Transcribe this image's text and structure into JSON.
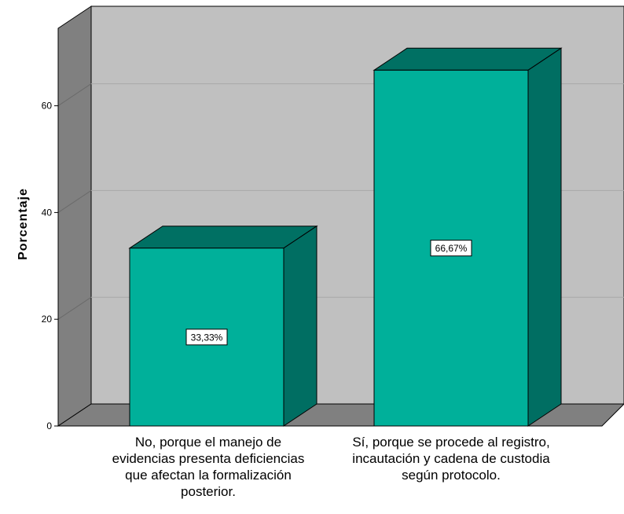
{
  "chart_data": {
    "type": "bar",
    "title": "",
    "xlabel": "",
    "ylabel": "Porcentaje",
    "ylim": [
      0,
      70
    ],
    "yticks": [
      "0",
      "20",
      "40",
      "60"
    ],
    "grid": true,
    "style": "3d",
    "categories": [
      "No, porque el manejo de evidencias presenta deficiencias que afectan la formalización posterior.",
      "Sí, porque se procede al registro, incautación y cadena de custodia según protocolo."
    ],
    "category_lines": [
      [
        "No, porque el manejo de",
        "evidencias presenta deficiencias",
        "que afectan la formalización",
        "posterior."
      ],
      [
        "Sí, porque se procede al registro,",
        "incautación y cadena de custodia",
        "según protocolo."
      ]
    ],
    "values": [
      33.33,
      66.67
    ],
    "data_labels": [
      "33,33%",
      "66,67%"
    ],
    "colors": {
      "bar_front": "#00b09a",
      "bar_top": "#007063",
      "bar_side": "#006e62",
      "wall": "#c0c0c0",
      "left_wall": "#808080",
      "floor": "#808080",
      "gridline": "#a8a8a8"
    }
  }
}
